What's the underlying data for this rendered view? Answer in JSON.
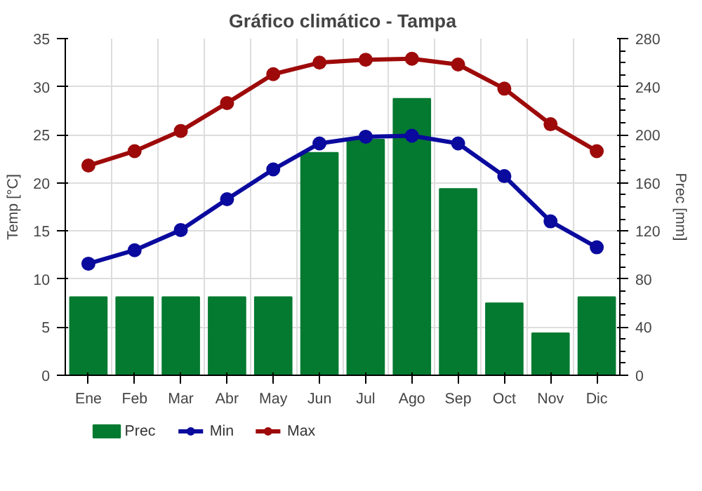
{
  "chart_data": {
    "type": "bar",
    "title": "Gráfico climático - Tampa",
    "ylabel": "Temp [°C]",
    "y2label": "Prec [mm]",
    "categories": [
      "Ene",
      "Feb",
      "Mar",
      "Abr",
      "May",
      "Jun",
      "Jul",
      "Ago",
      "Sep",
      "Oct",
      "Nov",
      "Dic"
    ],
    "series": [
      {
        "name": "Prec",
        "axis": "y2",
        "color": "#047a30",
        "values": [
          65,
          65,
          65,
          65,
          65,
          185,
          196,
          230,
          155,
          60,
          35,
          65
        ]
      },
      {
        "name": "Min",
        "type": "line",
        "color": "#0a0a9e",
        "values": [
          11.6,
          13.0,
          15.1,
          18.3,
          21.4,
          24.1,
          24.8,
          24.9,
          24.1,
          20.7,
          16.0,
          13.3
        ]
      },
      {
        "name": "Max",
        "type": "line",
        "color": "#9e0a0a",
        "values": [
          21.8,
          23.3,
          25.4,
          28.3,
          31.3,
          32.5,
          32.8,
          32.9,
          32.3,
          29.8,
          26.1,
          23.3
        ]
      }
    ],
    "ylim": [
      0,
      35
    ],
    "yticks": [
      0,
      5,
      10,
      15,
      20,
      25,
      30,
      35
    ],
    "y2lim": [
      0,
      280
    ],
    "y2ticks": [
      0,
      40,
      80,
      120,
      160,
      200,
      240,
      280
    ],
    "grid": true,
    "legend": "bottom",
    "marker": "circle",
    "line_style": "solid"
  }
}
